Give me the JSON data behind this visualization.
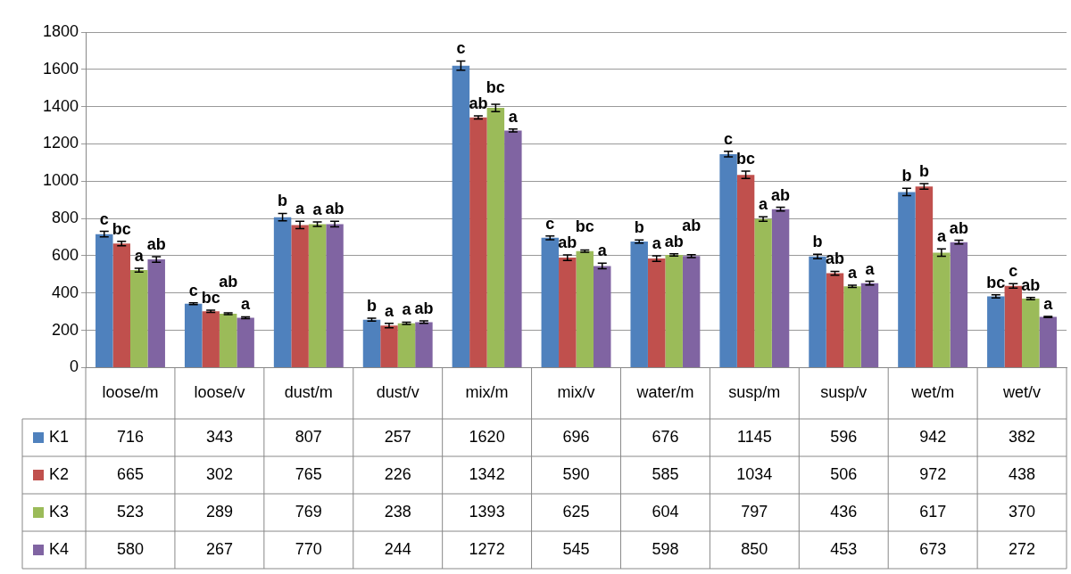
{
  "chart_data": {
    "type": "bar",
    "categories": [
      "loose/m",
      "loose/v",
      "dust/m",
      "dust/v",
      "mix/m",
      "mix/v",
      "water/m",
      "susp/m",
      "susp/v",
      "wet/m",
      "wet/v"
    ],
    "series": [
      {
        "name": "K1",
        "color": "#4f81bd",
        "values": [
          716,
          343,
          807,
          257,
          1620,
          696,
          676,
          1145,
          596,
          942,
          382
        ],
        "errors": [
          15,
          5,
          20,
          8,
          25,
          10,
          8,
          15,
          12,
          20,
          8
        ]
      },
      {
        "name": "K2",
        "color": "#c0504d",
        "values": [
          665,
          302,
          765,
          226,
          1342,
          590,
          585,
          1034,
          506,
          972,
          438
        ],
        "errors": [
          12,
          6,
          20,
          12,
          8,
          15,
          15,
          20,
          10,
          15,
          12
        ]
      },
      {
        "name": "K3",
        "color": "#9bbb59",
        "values": [
          523,
          289,
          769,
          238,
          1393,
          625,
          604,
          797,
          436,
          617,
          370
        ],
        "errors": [
          10,
          5,
          12,
          6,
          20,
          6,
          6,
          12,
          6,
          20,
          6
        ]
      },
      {
        "name": "K4",
        "color": "#8064a2",
        "values": [
          580,
          267,
          770,
          244,
          1272,
          545,
          598,
          850,
          453,
          673,
          272
        ],
        "errors": [
          15,
          5,
          15,
          6,
          8,
          15,
          8,
          10,
          10,
          10,
          3
        ]
      }
    ],
    "ylim": [
      0,
      1800
    ],
    "yticks": [
      0,
      200,
      400,
      600,
      800,
      1000,
      1200,
      1400,
      1600,
      1800
    ],
    "grid": "y",
    "legend": "bottom",
    "data_labels": true,
    "annotations": [
      "c",
      "bc",
      "a",
      "ab",
      "c",
      "bc",
      "ab",
      "a",
      "b",
      "a",
      "a",
      "ab",
      "b",
      "a",
      "a",
      "ab",
      "c",
      "ab",
      "bc",
      "a",
      "c",
      "ab",
      "bc",
      "a",
      "b",
      "a",
      "ab",
      "ab",
      "c",
      "bc",
      "a",
      "ab",
      "b",
      "ab",
      "a",
      "a",
      "b",
      "b",
      "a",
      "ab",
      "bc",
      "c",
      "ab",
      "a"
    ]
  }
}
